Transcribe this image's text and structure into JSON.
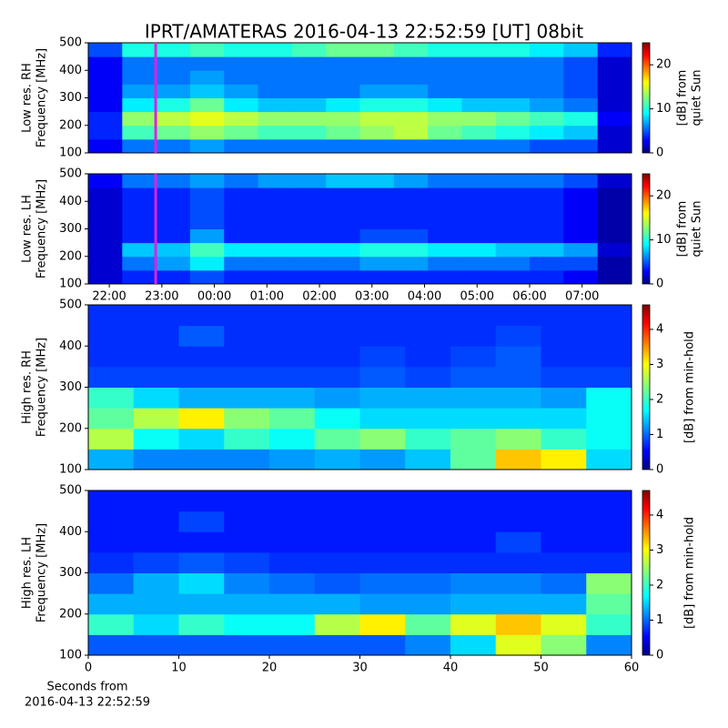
{
  "chart_data": [
    {
      "type": "heatmap",
      "title": "IPRT/AMATERAS 2016-04-13 22:52:59 [UT]   08bit",
      "ylabel": [
        "Low res. RH",
        "Frequency [MHz]"
      ],
      "ylim": [
        100,
        500
      ],
      "yticks": [
        100,
        200,
        300,
        400,
        500
      ],
      "xlim": [
        21.6,
        31.94
      ],
      "colormap": "jet",
      "zlim": [
        0,
        25
      ],
      "zticks": [
        0,
        10,
        20
      ],
      "colorbar_label": [
        "[dB] from",
        "quiet Sun"
      ],
      "marker_x": 22.883,
      "marker_color": "#e020e0",
      "z": [
        [
          3,
          6,
          6,
          7,
          6,
          6,
          6,
          6,
          6,
          6,
          6,
          6,
          6,
          5,
          5,
          2
        ],
        [
          4,
          11,
          12,
          13,
          12,
          11,
          11,
          12,
          13,
          14,
          12,
          11,
          10,
          9,
          8,
          2
        ],
        [
          4,
          13,
          14,
          15,
          14,
          13,
          13,
          13,
          14,
          14,
          13,
          13,
          12,
          11,
          10,
          3
        ],
        [
          3,
          9,
          10,
          12,
          9,
          8,
          8,
          9,
          10,
          10,
          9,
          8,
          8,
          7,
          6,
          2
        ],
        [
          3,
          7,
          7,
          8,
          7,
          6,
          6,
          6,
          7,
          7,
          6,
          6,
          6,
          6,
          5,
          2
        ],
        [
          3,
          6,
          6,
          7,
          6,
          6,
          6,
          6,
          6,
          6,
          6,
          6,
          6,
          6,
          5,
          2
        ],
        [
          3,
          6,
          6,
          6,
          6,
          6,
          6,
          6,
          6,
          6,
          6,
          6,
          6,
          6,
          5,
          2
        ],
        [
          5,
          10,
          10,
          11,
          10,
          10,
          11,
          12,
          12,
          11,
          10,
          10,
          10,
          9,
          8,
          4
        ]
      ]
    },
    {
      "type": "heatmap",
      "ylabel": [
        "Low res. LH",
        "Frequency [MHz]"
      ],
      "ylim": [
        100,
        500
      ],
      "yticks": [
        100,
        200,
        300,
        400,
        500
      ],
      "xlim": [
        21.6,
        31.94
      ],
      "xticks": [
        {
          "value": 22,
          "label": "22:00"
        },
        {
          "value": 23,
          "label": "23:00"
        },
        {
          "value": 24,
          "label": "00:00"
        },
        {
          "value": 25,
          "label": "01:00"
        },
        {
          "value": 26,
          "label": "02:00"
        },
        {
          "value": 27,
          "label": "03:00"
        },
        {
          "value": 28,
          "label": "04:00"
        },
        {
          "value": 29,
          "label": "05:00"
        },
        {
          "value": 30,
          "label": "06:00"
        },
        {
          "value": 31,
          "label": "07:00"
        }
      ],
      "colormap": "jet",
      "zlim": [
        0,
        25
      ],
      "zticks": [
        0,
        10,
        20
      ],
      "colorbar_label": [
        "[dB] from",
        "quiet Sun"
      ],
      "marker_x": 22.883,
      "marker_color": "#e020e0",
      "z": [
        [
          2,
          4,
          4,
          5,
          4,
          4,
          4,
          4,
          4,
          4,
          4,
          4,
          4,
          4,
          3,
          1
        ],
        [
          2,
          6,
          7,
          9,
          6,
          6,
          6,
          6,
          7,
          7,
          6,
          6,
          6,
          5,
          5,
          1
        ],
        [
          2,
          8,
          8,
          11,
          9,
          9,
          9,
          9,
          10,
          10,
          9,
          9,
          8,
          8,
          7,
          2
        ],
        [
          2,
          4,
          4,
          7,
          4,
          4,
          4,
          4,
          5,
          5,
          4,
          4,
          4,
          4,
          3,
          1
        ],
        [
          2,
          4,
          4,
          5,
          4,
          4,
          4,
          4,
          4,
          4,
          4,
          4,
          4,
          4,
          3,
          1
        ],
        [
          2,
          4,
          4,
          5,
          4,
          4,
          4,
          4,
          4,
          4,
          4,
          4,
          4,
          4,
          3,
          1
        ],
        [
          2,
          4,
          4,
          5,
          4,
          4,
          4,
          4,
          4,
          4,
          4,
          4,
          4,
          4,
          3,
          1
        ],
        [
          3,
          6,
          6,
          7,
          6,
          7,
          7,
          8,
          8,
          7,
          6,
          6,
          6,
          6,
          5,
          2
        ]
      ]
    },
    {
      "type": "heatmap",
      "ylabel": [
        "High res. RH",
        "Frequency [MHz]"
      ],
      "ylim": [
        100,
        500
      ],
      "yticks": [
        100,
        200,
        300,
        400,
        500
      ],
      "xlim": [
        0,
        60
      ],
      "colormap": "jet",
      "zlim": [
        0,
        4.7
      ],
      "zticks": [
        0,
        1,
        2,
        3,
        4
      ],
      "colorbar_label": [
        "[dB] from min-hold"
      ],
      "z": [
        [
          1.4,
          1.2,
          1.2,
          1.2,
          1.3,
          1.4,
          1.3,
          1.5,
          2.2,
          3.2,
          3.0,
          1.6
        ],
        [
          2.6,
          1.8,
          1.6,
          2.0,
          1.8,
          2.2,
          2.4,
          2.0,
          2.2,
          2.4,
          2.0,
          1.8
        ],
        [
          2.2,
          2.6,
          3.0,
          2.4,
          2.2,
          1.8,
          1.6,
          1.6,
          1.6,
          1.6,
          1.6,
          1.8
        ],
        [
          2.0,
          1.6,
          1.4,
          1.4,
          1.4,
          1.3,
          1.4,
          1.4,
          1.4,
          1.4,
          1.3,
          1.8
        ],
        [
          0.9,
          0.9,
          0.9,
          0.9,
          0.9,
          0.9,
          1.0,
          0.9,
          1.0,
          1.0,
          0.9,
          0.9
        ],
        [
          0.8,
          0.8,
          0.8,
          0.8,
          0.8,
          0.8,
          0.9,
          0.8,
          0.9,
          1.0,
          0.8,
          0.8
        ],
        [
          0.8,
          0.8,
          1.0,
          0.8,
          0.8,
          0.8,
          0.8,
          0.8,
          0.8,
          0.9,
          0.8,
          0.8
        ],
        [
          0.8,
          0.8,
          0.8,
          0.8,
          0.8,
          0.8,
          0.8,
          0.8,
          0.8,
          0.8,
          0.8,
          0.8
        ]
      ]
    },
    {
      "type": "heatmap",
      "ylabel": [
        "High res. LH",
        "Frequency [MHz]"
      ],
      "ylim": [
        100,
        500
      ],
      "yticks": [
        100,
        200,
        300,
        400,
        500
      ],
      "xlim": [
        0,
        60
      ],
      "xticks": [
        0,
        10,
        20,
        30,
        40,
        50,
        60
      ],
      "xlabel": [
        "Seconds from",
        "2016-04-13 22:52:59"
      ],
      "colormap": "jet",
      "zlim": [
        0,
        4.7
      ],
      "zticks": [
        0,
        1,
        2,
        3,
        4
      ],
      "colorbar_label": [
        "[dB] from min-hold"
      ],
      "z": [
        [
          1.0,
          1.0,
          1.0,
          1.0,
          1.0,
          1.0,
          1.0,
          1.2,
          1.6,
          2.8,
          2.4,
          1.2
        ],
        [
          2.0,
          1.6,
          2.0,
          1.8,
          1.8,
          2.6,
          3.0,
          2.2,
          2.8,
          3.2,
          2.8,
          2.0
        ],
        [
          1.4,
          1.4,
          1.4,
          1.4,
          1.4,
          1.4,
          1.3,
          1.3,
          1.4,
          1.4,
          1.4,
          2.2
        ],
        [
          1.1,
          1.4,
          1.6,
          1.2,
          1.1,
          1.0,
          1.1,
          1.1,
          1.2,
          1.2,
          1.1,
          2.4
        ],
        [
          0.8,
          0.9,
          1.0,
          0.9,
          0.8,
          0.8,
          0.8,
          0.8,
          0.8,
          0.8,
          0.8,
          0.8
        ],
        [
          0.7,
          0.7,
          0.7,
          0.7,
          0.7,
          0.7,
          0.7,
          0.7,
          0.7,
          0.9,
          0.7,
          0.7
        ],
        [
          0.7,
          0.7,
          0.9,
          0.7,
          0.7,
          0.7,
          0.7,
          0.7,
          0.7,
          0.7,
          0.7,
          0.7
        ],
        [
          0.7,
          0.7,
          0.7,
          0.7,
          0.7,
          0.7,
          0.7,
          0.7,
          0.7,
          0.7,
          0.7,
          0.7
        ]
      ]
    }
  ]
}
